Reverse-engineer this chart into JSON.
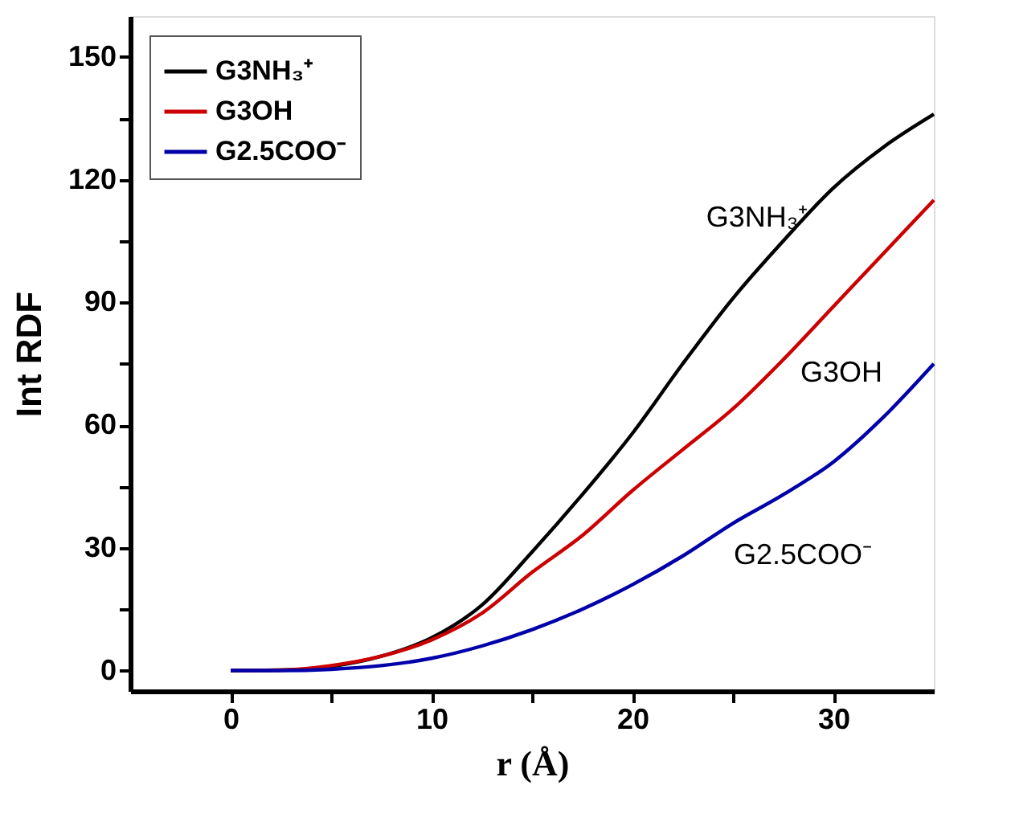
{
  "chart_data": {
    "type": "line",
    "xlabel": "r (Å)",
    "ylabel": "Int RDF",
    "x": [
      0,
      2.5,
      5,
      7.5,
      10,
      12.5,
      15,
      17.5,
      20,
      22.5,
      25,
      27.5,
      30,
      32.5,
      35
    ],
    "series": [
      {
        "name": "G3NH₃⁺",
        "color": "#000000",
        "values": [
          0,
          0.1,
          1,
          3.5,
          8,
          16,
          29,
          43,
          58,
          75,
          91,
          105,
          118,
          128,
          136
        ]
      },
      {
        "name": "G3OH",
        "color": "#cc0000",
        "values": [
          0,
          0.1,
          1.2,
          3.5,
          7.5,
          14,
          24,
          33,
          44,
          54,
          64,
          76,
          89,
          102,
          115
        ]
      },
      {
        "name": "G2.5COO⁻",
        "color": "#0000aa",
        "values": [
          0,
          0,
          0.3,
          1.2,
          3,
          6,
          10,
          15,
          21,
          28,
          36,
          43,
          51,
          62,
          75
        ]
      }
    ],
    "xlim": [
      -5,
      35
    ],
    "ylim": [
      -5,
      160
    ],
    "xticks": [
      0,
      {
        "value": 5,
        "label": null
      },
      10,
      {
        "value": 15,
        "label": null
      },
      20,
      {
        "value": 25,
        "label": null
      },
      30
    ],
    "yticks": [
      0,
      {
        "value": 15,
        "label": null
      },
      30,
      {
        "value": 45,
        "label": null
      },
      60,
      {
        "value": 75,
        "label": null
      },
      90,
      {
        "value": 105,
        "label": null
      },
      120,
      {
        "value": 135,
        "label": null
      },
      150
    ],
    "annotations": [
      "G3NH₃⁺",
      "G3OH",
      "G2.5COO⁻"
    ],
    "legend": "top left",
    "grid": false,
    "line_style": "solid",
    "marker": "none"
  }
}
